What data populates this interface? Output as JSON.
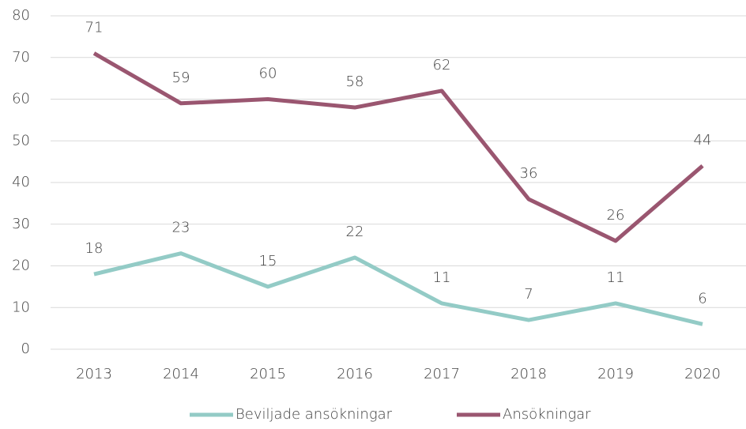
{
  "chart_data": {
    "type": "line",
    "categories": [
      "2013",
      "2014",
      "2015",
      "2016",
      "2017",
      "2018",
      "2019",
      "2020"
    ],
    "series": [
      {
        "name": "Beviljade ansökningar",
        "color": "#93cbc6",
        "values": [
          18,
          23,
          15,
          22,
          11,
          7,
          11,
          6
        ]
      },
      {
        "name": "Ansökningar",
        "color": "#9a5670",
        "values": [
          71,
          59,
          60,
          58,
          62,
          36,
          26,
          44
        ]
      }
    ],
    "ylim": [
      0,
      80
    ],
    "yticks": [
      0,
      10,
      20,
      30,
      40,
      50,
      60,
      70,
      80
    ],
    "grid": true,
    "legend": "bottom"
  }
}
